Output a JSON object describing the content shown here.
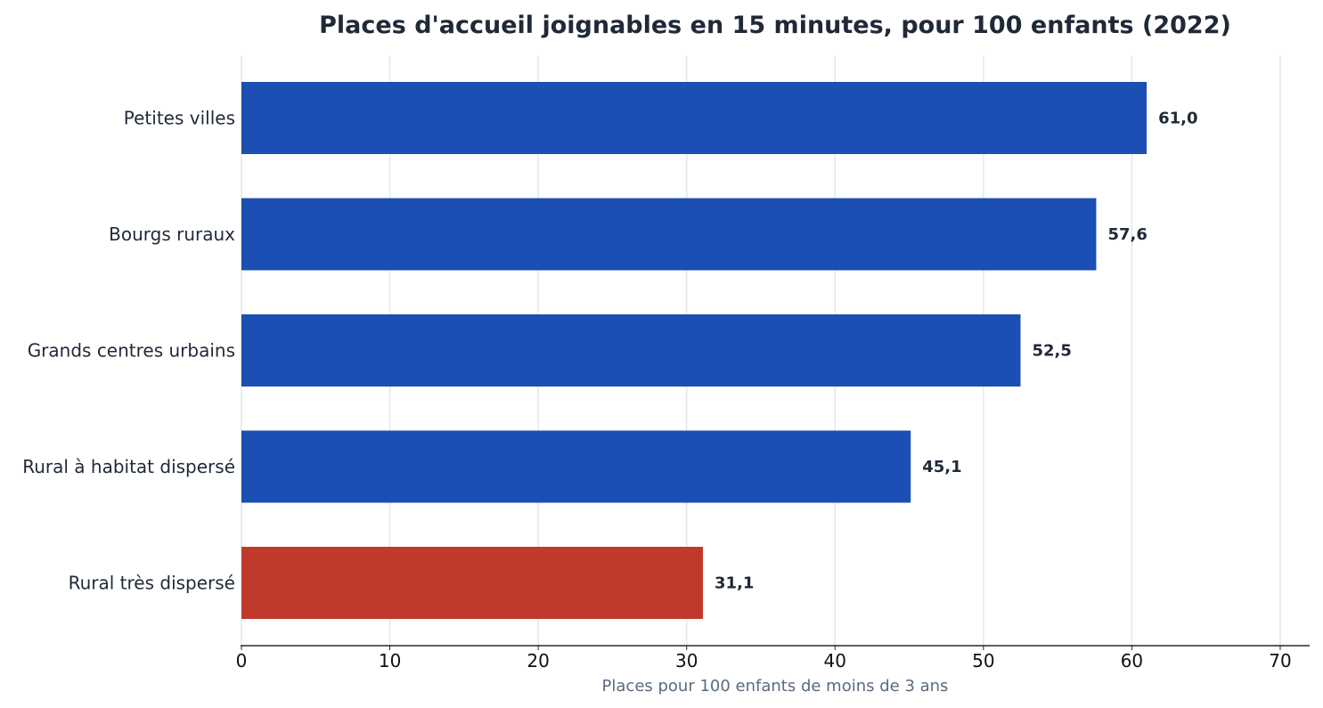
{
  "chart_data": {
    "type": "bar",
    "orientation": "horizontal",
    "title": "Places d'accueil joignables en 15 minutes, pour 100 enfants (2022)",
    "xlabel": "Places pour 100 enfants de moins de 3 ans",
    "ylabel": "",
    "categories": [
      "Petites villes",
      "Bourgs ruraux",
      "Grands centres urbains",
      "Rural à habitat dispersé",
      "Rural très dispersé"
    ],
    "values": [
      61.0,
      57.6,
      52.5,
      45.1,
      31.1
    ],
    "value_labels": [
      "61,0",
      "57,6",
      "52,5",
      "45,1",
      "31,1"
    ],
    "bar_colors": [
      "#1b4fb3",
      "#1b4fb3",
      "#1b4fb3",
      "#1b4fb3",
      "#c0392b"
    ],
    "xlim": [
      0,
      72
    ],
    "xticks": [
      0,
      10,
      20,
      30,
      40,
      50,
      60,
      70
    ],
    "grid": "vertical",
    "legend": "none"
  }
}
